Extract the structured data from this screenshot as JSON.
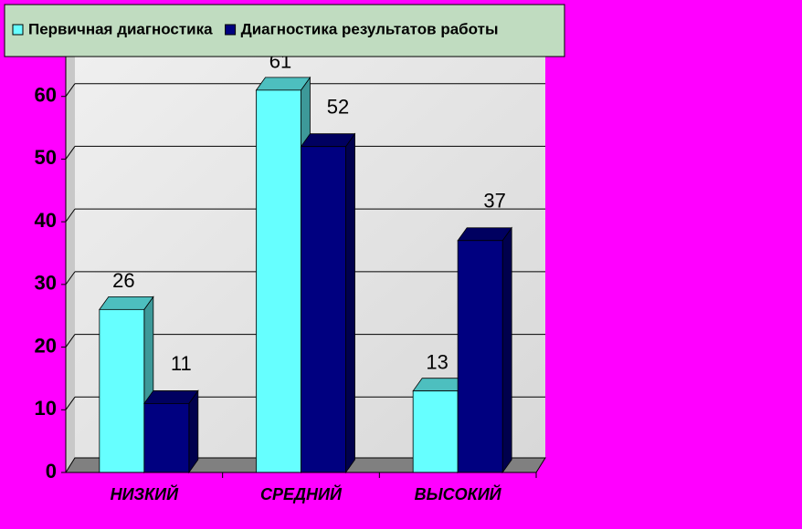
{
  "chart_data": {
    "type": "bar3d",
    "categories": [
      "НИЗКИЙ",
      "СРЕДНИЙ",
      "ВЫСОКИЙ"
    ],
    "series": [
      {
        "name": "Первичная диагностика",
        "color": "#66ffff",
        "values": [
          26,
          61,
          13
        ]
      },
      {
        "name": "Диагностика результатов работы",
        "color": "#000080",
        "values": [
          11,
          52,
          37
        ]
      }
    ],
    "ylim": [
      0,
      70
    ],
    "yticks": [
      0,
      10,
      20,
      30,
      40,
      50,
      60
    ],
    "grid": true,
    "legend": "top"
  }
}
